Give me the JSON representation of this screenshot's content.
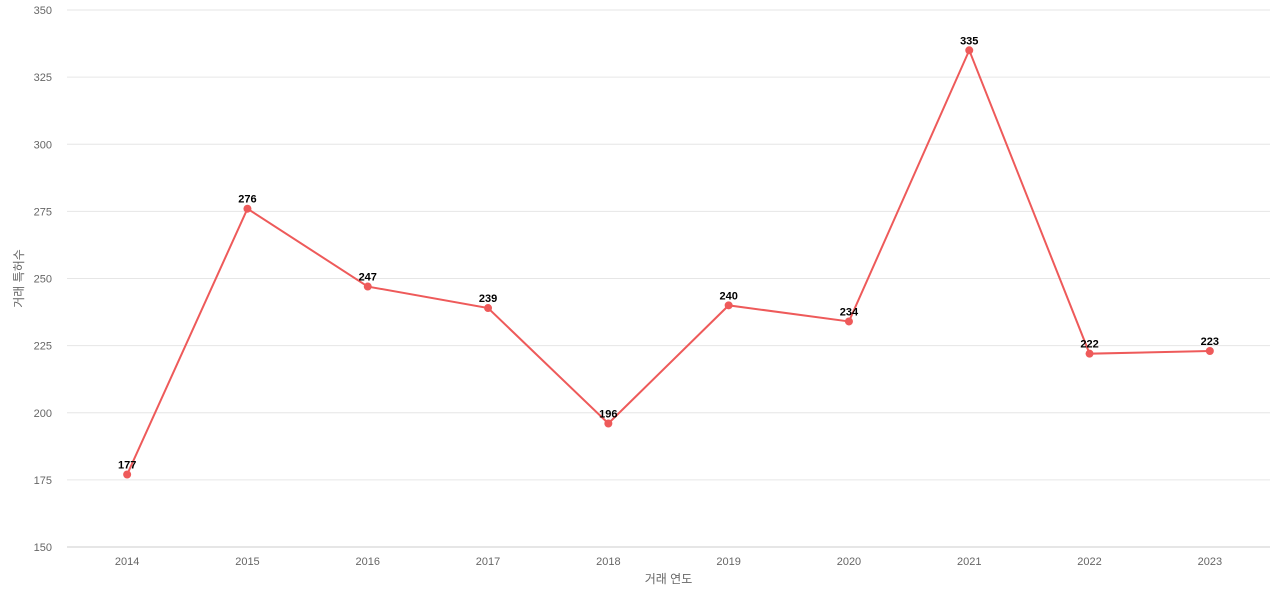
{
  "chart_data": {
    "type": "line",
    "title": "",
    "xlabel": "거래 연도",
    "ylabel": "거래 특허수",
    "categories": [
      "2014",
      "2015",
      "2016",
      "2017",
      "2018",
      "2019",
      "2020",
      "2021",
      "2022",
      "2023"
    ],
    "series": [
      {
        "values": [
          177,
          276,
          247,
          239,
          196,
          240,
          234,
          335,
          222,
          223
        ]
      }
    ],
    "ylim": [
      150,
      350
    ],
    "yticks": [
      150,
      175,
      200,
      225,
      250,
      275,
      300,
      325,
      350
    ],
    "grid": true,
    "legend": "none",
    "data_labels": true,
    "colors": {
      "line": "#ee5a5a",
      "grid": "#e6e6e6",
      "text": "#666666"
    }
  }
}
